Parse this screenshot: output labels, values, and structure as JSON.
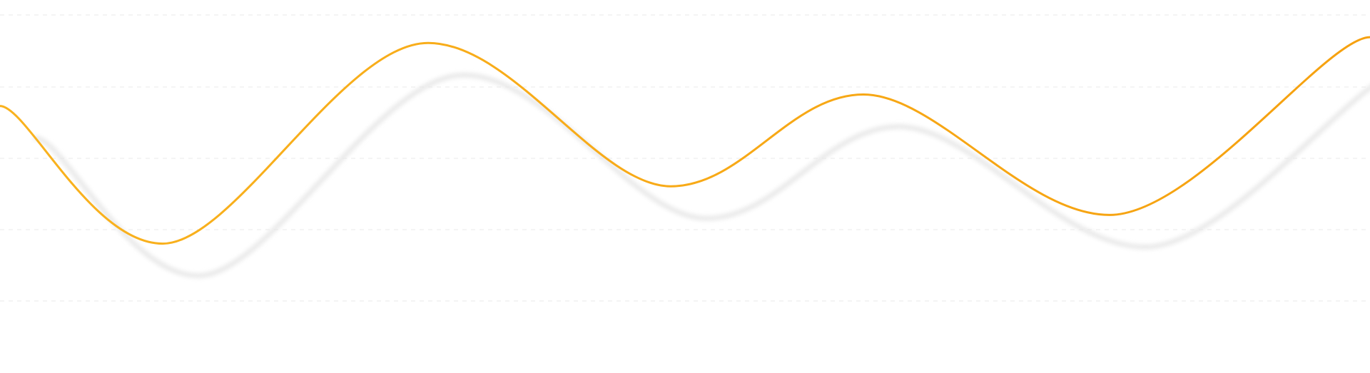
{
  "chart_data": {
    "type": "line",
    "title": "",
    "xlabel": "",
    "ylabel": "",
    "grid": true,
    "legend": "none",
    "ylim": [
      0,
      5
    ],
    "x": [
      0,
      1,
      2,
      3,
      4,
      5,
      6
    ],
    "series": [
      {
        "values": [
          3.4,
          1.0,
          4.5,
          2.0,
          3.6,
          1.5,
          4.6
        ],
        "color": "#f9b21e",
        "color_end": "#f6a10f"
      }
    ],
    "shadow_color": "#e6e6e6",
    "gridline_color": "#e9e9e9"
  }
}
